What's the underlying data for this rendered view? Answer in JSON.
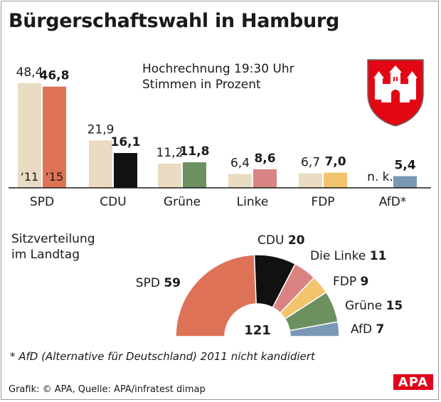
{
  "title": "Bürgerschaftswahl in Hamburg",
  "subtitle_line1": "Hochrechnung 19:30 Uhr",
  "subtitle_line2": "Stimmen in Prozent",
  "year_label_2011": "‘11",
  "year_label_2015": "‘15",
  "seats_title_line1": "Sitzverteilung",
  "seats_title_line2": "im Landtag",
  "footnote": "* AfD (Alternative für Deutschland) 2011 nicht kandidiert",
  "source": "Grafik: © APA, Quelle: APA/infratest dimap",
  "logo_text": "APA",
  "chart_data": [
    {
      "type": "bar",
      "title": "Hochrechnung 19:30 Uhr",
      "ylabel": "Stimmen in Prozent",
      "categories": [
        "SPD",
        "CDU",
        "Grüne",
        "Linke",
        "FDP",
        "AfD*"
      ],
      "series": [
        {
          "name": "‘11",
          "values": [
            48.4,
            21.9,
            11.2,
            6.4,
            6.7,
            null
          ],
          "labels": [
            "48,4",
            "21,9",
            "11,2",
            "6,4",
            "6,7",
            "n. k."
          ],
          "color": "#e9dcc2"
        },
        {
          "name": "‘15",
          "values": [
            46.8,
            16.1,
            11.8,
            8.6,
            7.0,
            5.4
          ],
          "labels": [
            "46,8",
            "16,1",
            "11,8",
            "8,6",
            "7,0",
            "5,4"
          ],
          "colors": [
            "#de7257",
            "#111111",
            "#6d9060",
            "#d98482",
            "#f2c46c",
            "#7a98b6"
          ]
        }
      ],
      "ylim": [
        0,
        50
      ]
    },
    {
      "type": "pie",
      "title": "Sitzverteilung im Landtag",
      "total": 121,
      "total_label": "121",
      "slices": [
        {
          "name": "SPD",
          "value": 59,
          "label": "59",
          "color": "#de7257"
        },
        {
          "name": "CDU",
          "value": 20,
          "label": "20",
          "color": "#111111"
        },
        {
          "name": "Die Linke",
          "value": 11,
          "label": "11",
          "color": "#d98482"
        },
        {
          "name": "FDP",
          "value": 9,
          "label": "9",
          "color": "#f2c46c"
        },
        {
          "name": "Grüne",
          "value": 15,
          "label": "15",
          "color": "#6d9060"
        },
        {
          "name": "AfD",
          "value": 7,
          "label": "7",
          "color": "#7a98b6"
        }
      ]
    }
  ]
}
